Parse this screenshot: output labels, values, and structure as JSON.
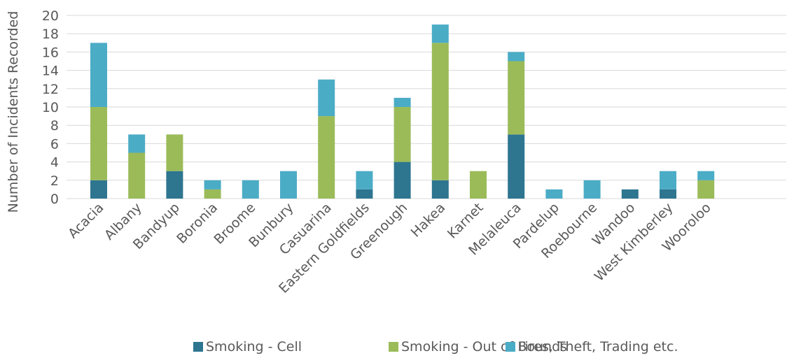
{
  "chart_data": {
    "type": "bar",
    "stacked": true,
    "title": "",
    "xlabel": "",
    "ylabel": "Number of Incidents Recorded",
    "ylim": [
      0,
      20
    ],
    "yticks": [
      0,
      2,
      4,
      6,
      8,
      10,
      12,
      14,
      16,
      18,
      20
    ],
    "grid": true,
    "legend_position": "bottom",
    "categories": [
      "Acacia",
      "Albany",
      "Bandyup",
      "Boronia",
      "Broome",
      "Bunbury",
      "Casuarina",
      "Eastern Goldfields",
      "Greenough",
      "Hakea",
      "Karnet",
      "Melaleuca",
      "Pardelup",
      "Roebourne",
      "Wandoo",
      "West Kimberley",
      "Wooroloo"
    ],
    "series": [
      {
        "name": "Smoking - Cell",
        "color": "#2e7590",
        "values": [
          2,
          0,
          3,
          0,
          0,
          0,
          0,
          1,
          4,
          2,
          0,
          7,
          0,
          0,
          1,
          1,
          0
        ]
      },
      {
        "name": "Smoking - Out of Bounds",
        "color": "#9bbb59",
        "values": [
          8,
          5,
          4,
          1,
          0,
          0,
          9,
          0,
          6,
          15,
          3,
          8,
          0,
          0,
          0,
          0,
          2
        ]
      },
      {
        "name": "Fires, Theft, Trading etc.",
        "color": "#4bacc6",
        "values": [
          7,
          2,
          0,
          1,
          2,
          3,
          4,
          2,
          1,
          2,
          0,
          1,
          1,
          2,
          0,
          2,
          1
        ]
      }
    ]
  }
}
